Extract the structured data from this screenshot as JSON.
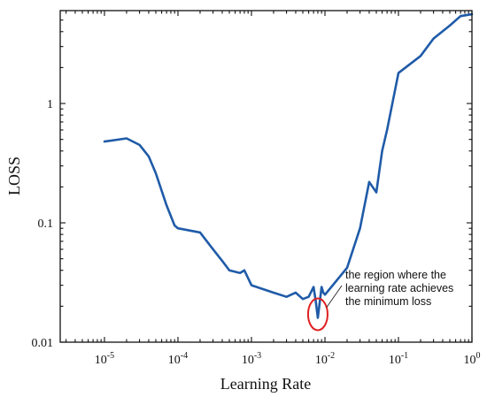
{
  "chart_data": {
    "type": "line",
    "title": "",
    "xlabel": "Learning Rate",
    "ylabel": "LOSS",
    "xscale": "log",
    "yscale": "log",
    "xlim": [
      2.5e-06,
      1.0
    ],
    "ylim": [
      0.01,
      6.0
    ],
    "grid": false,
    "x_ticks": [
      {
        "value": 1e-05,
        "base": "10",
        "exp": "-5"
      },
      {
        "value": 0.0001,
        "base": "10",
        "exp": "-4"
      },
      {
        "value": 0.001,
        "base": "10",
        "exp": "-3"
      },
      {
        "value": 0.01,
        "base": "10",
        "exp": "-2"
      },
      {
        "value": 0.1,
        "base": "10",
        "exp": "-1"
      },
      {
        "value": 1.0,
        "base": "10",
        "exp": "0"
      }
    ],
    "y_ticks": [
      {
        "value": 0.01,
        "label": "0.01"
      },
      {
        "value": 0.1,
        "label": "0.1"
      },
      {
        "value": 1.0,
        "label": "1"
      }
    ],
    "colors": {
      "series": "#1f5ba8",
      "annotation_circle": "#e02020"
    },
    "series": [
      {
        "x": [
          1e-05,
          2e-05,
          3e-05,
          4e-05,
          5e-05,
          7e-05,
          9e-05,
          0.0001,
          0.0002,
          0.0003,
          0.0004,
          0.0005,
          0.0007,
          0.0008,
          0.001,
          0.002,
          0.003,
          0.004,
          0.005,
          0.006,
          0.007,
          0.0075,
          0.008,
          0.009,
          0.0095,
          0.01,
          0.02,
          0.03,
          0.04,
          0.05,
          0.06,
          0.07,
          0.1,
          0.2,
          0.3,
          0.5,
          0.7,
          1.0
        ],
        "y": [
          0.48,
          0.51,
          0.45,
          0.36,
          0.26,
          0.14,
          0.095,
          0.09,
          0.083,
          0.06,
          0.048,
          0.04,
          0.038,
          0.04,
          0.03,
          0.026,
          0.024,
          0.026,
          0.023,
          0.024,
          0.029,
          0.022,
          0.016,
          0.029,
          0.026,
          0.025,
          0.042,
          0.09,
          0.22,
          0.18,
          0.4,
          0.6,
          1.8,
          2.5,
          3.5,
          4.5,
          5.4,
          5.6
        ]
      }
    ],
    "annotations": [
      {
        "lines": [
          "the region where the",
          "learning rate achieves",
          "the minimum loss"
        ],
        "target_x": 0.008,
        "target_y": 0.016
      }
    ]
  }
}
